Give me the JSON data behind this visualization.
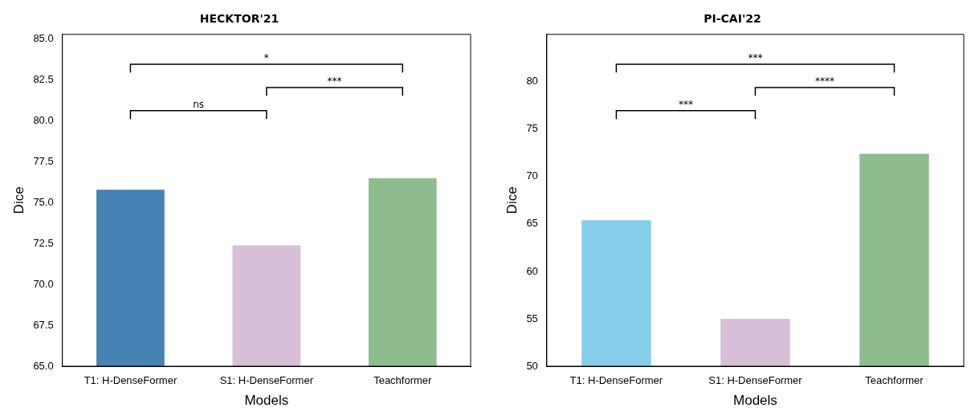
{
  "chart_data": [
    {
      "type": "bar",
      "title": "HECKTOR'21",
      "xlabel": "Models",
      "ylabel": "Dice",
      "categories": [
        "T1: H-DenseFormer",
        "S1: H-DenseFormer",
        "Teachformer"
      ],
      "values": [
        75.8,
        72.4,
        76.5
      ],
      "colors": [
        "#4682b4",
        "#d8bfd8",
        "#8fbc8f"
      ],
      "ylim": [
        65,
        85.3
      ],
      "yticks": [
        {
          "value": 65,
          "label": "65.0"
        },
        {
          "value": 67.5,
          "label": "67.5"
        },
        {
          "value": 70,
          "label": "70.0"
        },
        {
          "value": 72.5,
          "label": "72.5"
        },
        {
          "value": 75,
          "label": "75.0"
        },
        {
          "value": 77.5,
          "label": "77.5"
        },
        {
          "value": 80,
          "label": "80.0"
        },
        {
          "value": 82.5,
          "label": "82.5"
        },
        {
          "value": 85,
          "label": "85.0"
        }
      ],
      "grid": false,
      "legend": false,
      "annotations": [
        "*",
        "***",
        "ns"
      ]
    },
    {
      "type": "bar",
      "title": "PI-CAI'22",
      "xlabel": "Models",
      "ylabel": "Dice",
      "categories": [
        "T1: H-DenseFormer",
        "S1: H-DenseFormer",
        "Teachformer"
      ],
      "values": [
        65.4,
        55.0,
        72.4
      ],
      "colors": [
        "#87ceeb",
        "#d8bfd8",
        "#8fbc8f"
      ],
      "ylim": [
        50,
        85
      ],
      "yticks": [
        50,
        55,
        60,
        65,
        70,
        75,
        80
      ],
      "grid": false,
      "legend": false,
      "annotations": [
        "***",
        "****",
        "***"
      ]
    }
  ]
}
